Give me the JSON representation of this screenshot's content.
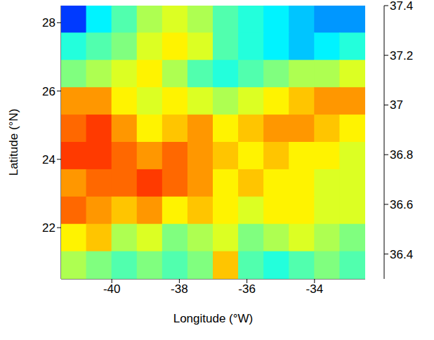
{
  "chart_data": {
    "type": "heatmap",
    "xlabel": "Longitude (°W)",
    "ylabel": "Latitude (°N)",
    "xlim": [
      -41.5,
      -32.5
    ],
    "ylim": [
      20.5,
      28.5
    ],
    "xticks": [
      -40,
      -38,
      -36,
      -34
    ],
    "yticks": [
      22,
      24,
      26,
      28
    ],
    "x": [
      -41.125,
      -40.375,
      -39.625,
      -38.875,
      -38.125,
      -37.375,
      -36.625,
      -35.875,
      -35.125,
      -34.375,
      -33.625,
      -32.875
    ],
    "y": [
      28.1,
      27.3,
      26.5,
      25.7,
      24.9,
      24.1,
      23.3,
      22.5,
      21.7,
      20.9
    ],
    "values": [
      [
        36.5,
        36.7,
        36.8,
        36.9,
        36.95,
        36.9,
        36.8,
        36.75,
        36.7,
        36.65,
        36.6,
        36.6
      ],
      [
        36.75,
        36.8,
        36.85,
        36.95,
        37.0,
        36.95,
        36.8,
        36.75,
        36.7,
        36.65,
        36.7,
        36.75
      ],
      [
        36.85,
        36.9,
        36.95,
        37.0,
        36.9,
        36.8,
        36.75,
        36.8,
        36.85,
        36.9,
        36.9,
        36.95
      ],
      [
        37.1,
        37.1,
        37.0,
        36.95,
        37.0,
        36.95,
        36.9,
        36.95,
        37.0,
        37.05,
        37.1,
        37.1
      ],
      [
        37.15,
        37.2,
        37.1,
        37.0,
        37.05,
        37.1,
        37.0,
        37.05,
        37.1,
        37.1,
        37.05,
        37.0
      ],
      [
        37.2,
        37.2,
        37.15,
        37.1,
        37.15,
        37.1,
        37.05,
        37.0,
        37.05,
        37.0,
        37.0,
        36.95
      ],
      [
        37.1,
        37.15,
        37.15,
        37.2,
        37.15,
        37.1,
        37.0,
        37.05,
        37.0,
        37.0,
        36.95,
        36.95
      ],
      [
        37.15,
        37.1,
        37.05,
        37.1,
        37.0,
        37.05,
        37.0,
        36.95,
        37.0,
        37.0,
        36.95,
        36.95
      ],
      [
        37.0,
        37.05,
        36.9,
        36.95,
        36.85,
        36.9,
        36.95,
        36.85,
        36.9,
        36.95,
        36.9,
        36.85
      ],
      [
        36.9,
        36.85,
        36.8,
        36.85,
        36.8,
        36.85,
        37.05,
        36.8,
        36.75,
        36.8,
        36.85,
        36.8
      ]
    ],
    "clim": [
      36.3,
      37.4
    ],
    "cticks": [
      36.4,
      36.6,
      36.8,
      37,
      37.2,
      37.4
    ]
  }
}
